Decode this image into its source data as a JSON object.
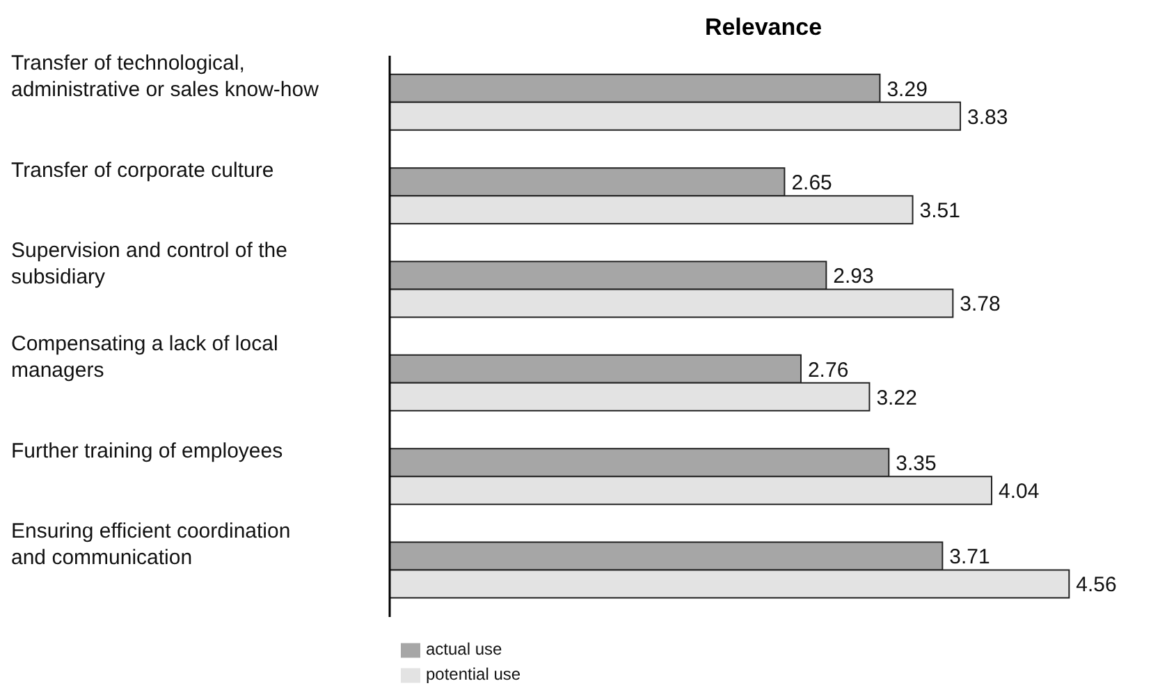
{
  "chart_data": {
    "type": "bar",
    "orientation": "horizontal",
    "title": "Relevance",
    "categories": [
      "Transfer of technological, administrative or sales know-how",
      "Transfer of corporate culture",
      "Supervision and control of the subsidiary",
      "Compensating a lack of local managers",
      "Further training of employees",
      "Ensuring efficient coordination and communication"
    ],
    "series": [
      {
        "name": "actual use",
        "color": "#a6a6a6",
        "values": [
          3.29,
          2.65,
          2.93,
          2.76,
          3.35,
          3.71
        ]
      },
      {
        "name": "potential use",
        "color": "#e3e3e3",
        "values": [
          3.83,
          3.51,
          3.78,
          3.22,
          4.04,
          4.56
        ]
      }
    ],
    "data_labels": true,
    "legend": "bottom",
    "grid": false,
    "tick_labels": "y"
  }
}
